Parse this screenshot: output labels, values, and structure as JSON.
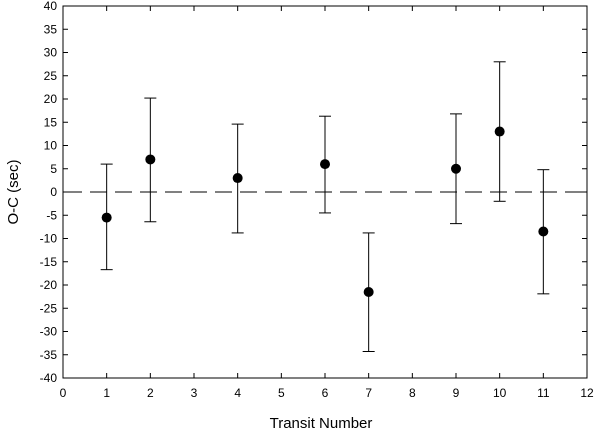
{
  "chart_data": {
    "type": "scatter",
    "title": "",
    "xlabel": "Transit Number",
    "ylabel": "O-C (sec)",
    "xlim": [
      0,
      12
    ],
    "ylim": [
      -40,
      40
    ],
    "xticks": [
      0,
      1,
      2,
      3,
      4,
      5,
      6,
      7,
      8,
      9,
      10,
      11,
      12
    ],
    "yticks": [
      -40,
      -35,
      -30,
      -25,
      -20,
      -15,
      -10,
      -5,
      0,
      5,
      10,
      15,
      20,
      25,
      30,
      35,
      40
    ],
    "grid": false,
    "reference_line": {
      "y": 0,
      "style": "dashed"
    },
    "series": [
      {
        "points": [
          {
            "x": 1,
            "y": -5.5,
            "err_low": -16.7,
            "err_high": 6.0
          },
          {
            "x": 2,
            "y": 7.0,
            "err_low": -6.4,
            "err_high": 20.2
          },
          {
            "x": 4,
            "y": 3.0,
            "err_low": -8.8,
            "err_high": 14.6
          },
          {
            "x": 6,
            "y": 6.0,
            "err_low": -4.5,
            "err_high": 16.3
          },
          {
            "x": 7,
            "y": -21.5,
            "err_low": -34.3,
            "err_high": -8.8
          },
          {
            "x": 9,
            "y": 5.0,
            "err_low": -6.8,
            "err_high": 16.8
          },
          {
            "x": 10,
            "y": 13.0,
            "err_low": -2.0,
            "err_high": 28.0
          },
          {
            "x": 11,
            "y": -8.5,
            "err_low": -21.9,
            "err_high": 4.8
          }
        ]
      }
    ]
  }
}
